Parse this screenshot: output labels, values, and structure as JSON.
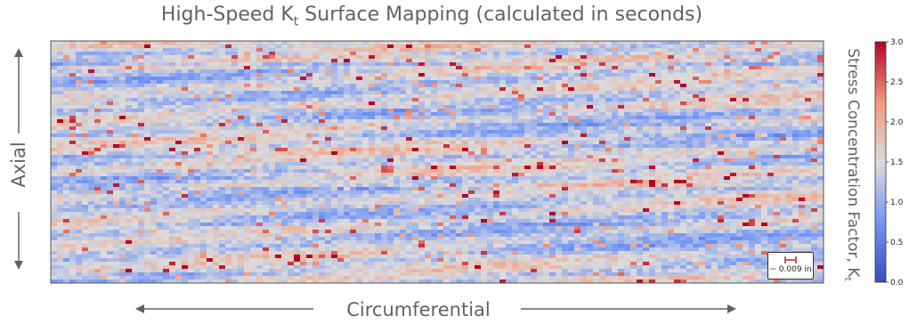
{
  "chart_data": {
    "type": "heatmap",
    "title_main": "High-Speed K",
    "title_sub": "t",
    "title_rest": " Surface Mapping (calculated in seconds)",
    "xlabel": "Circumferential",
    "ylabel": "Axial",
    "colorbar": {
      "label": "Stress Concentration Factor, K",
      "label_sub": "t",
      "ticks": [
        "0.0",
        "0.5",
        "1.0",
        "1.5",
        "2.0",
        "2.5",
        "3.0"
      ],
      "range": [
        0.0,
        3.0
      ],
      "colormap": "coolwarm"
    },
    "scale_bar_label": "~ 0.009 in",
    "field": {
      "baseline": 1.35,
      "pattern": "dense horizontal streaks, mostly light blue to gray with scattered red streaks"
    }
  },
  "colors": {
    "low": "#3b4cc0",
    "mid": "#dddcdc",
    "high": "#b40426",
    "text": "#5f6368",
    "scale_bar": "#b02a3a"
  }
}
